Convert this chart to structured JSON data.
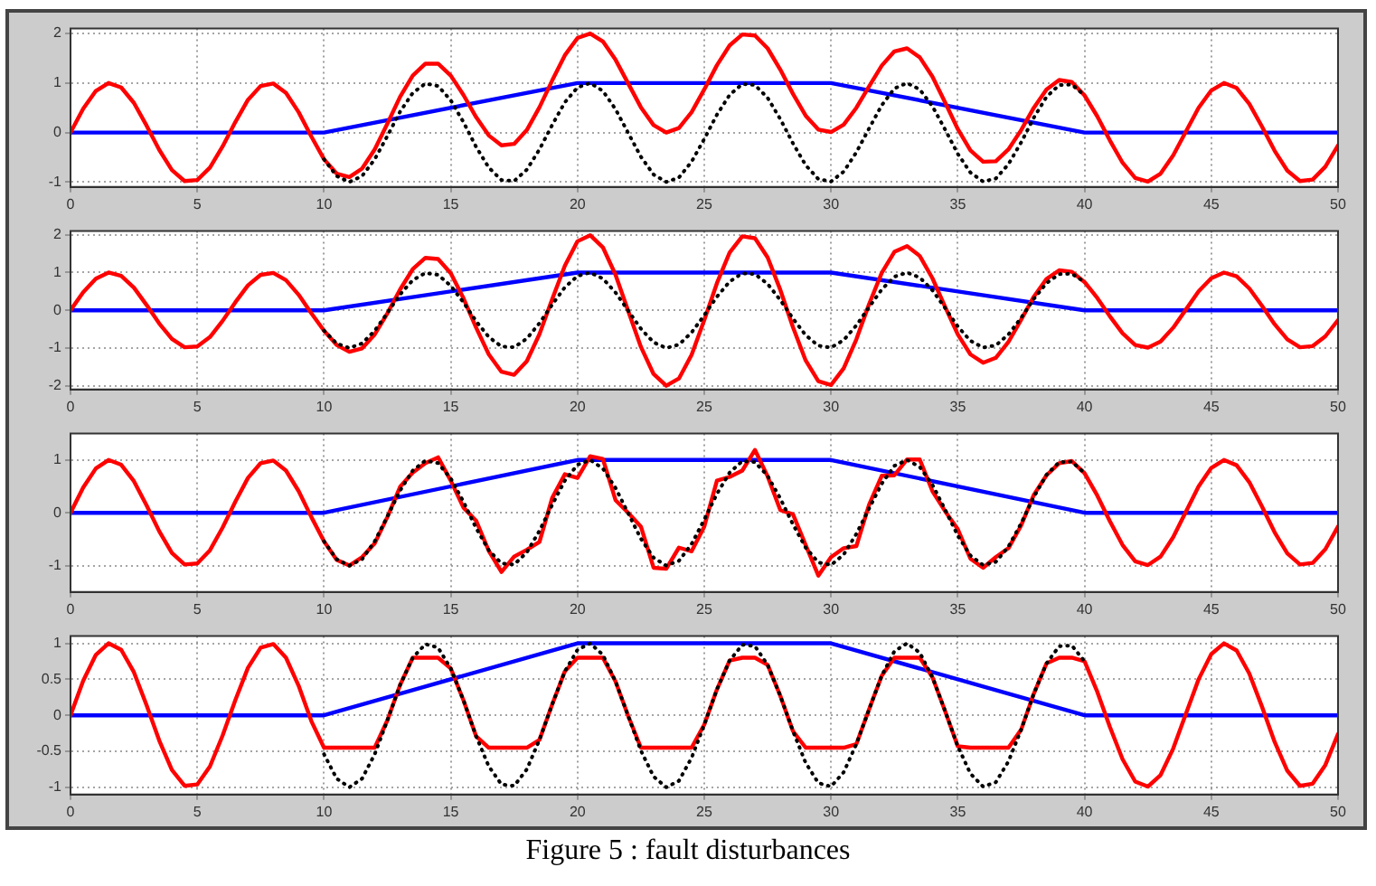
{
  "chart_data": [
    {
      "type": "line",
      "x": [
        0,
        0.5,
        1,
        1.5,
        2,
        2.5,
        3,
        3.5,
        4,
        4.5,
        5,
        5.5,
        6,
        6.5,
        7,
        7.5,
        8,
        8.5,
        9,
        9.5,
        10,
        10.5,
        11,
        11.5,
        12,
        12.5,
        13,
        13.5,
        14,
        14.5,
        15,
        15.5,
        16,
        16.5,
        17,
        17.5,
        18,
        18.5,
        19,
        19.5,
        20,
        20.5,
        21,
        21.5,
        22,
        22.5,
        23,
        23.5,
        24,
        24.5,
        25,
        25.5,
        26,
        26.5,
        27,
        27.5,
        28,
        28.5,
        29,
        29.5,
        30,
        30.5,
        31,
        31.5,
        32,
        32.5,
        33,
        33.5,
        34,
        34.5,
        35,
        35.5,
        36,
        36.5,
        37,
        37.5,
        38,
        38.5,
        39,
        39.5,
        40,
        40.5,
        41,
        41.5,
        42,
        42.5,
        43,
        43.5,
        44,
        44.5,
        45,
        45.5,
        46,
        46.5,
        47,
        47.5,
        48,
        48.5,
        49,
        49.5,
        50
      ],
      "xlim": [
        0,
        50
      ],
      "xticks": [
        0,
        5,
        10,
        15,
        20,
        25,
        30,
        35,
        40,
        45,
        50
      ],
      "ylim": [
        -1.1,
        2.1
      ],
      "yticks": [
        -1,
        0,
        1,
        2
      ],
      "grid": true,
      "marker": "none",
      "series": [
        {
          "color": "#000000",
          "line_style": "dotted",
          "x": [
            10,
            10.5,
            11,
            11.5,
            12,
            12.5,
            13,
            13.5,
            14,
            14.5,
            15,
            15.5,
            16,
            16.5,
            17,
            17.5,
            18,
            18.5,
            19,
            19.5,
            20,
            20.5,
            21,
            21.5,
            22,
            22.5,
            23,
            23.5,
            24,
            24.5,
            25,
            25.5,
            26,
            26.5,
            27,
            27.5,
            28,
            28.5,
            29,
            29.5,
            30,
            30.5,
            31,
            31.5,
            32,
            32.5,
            33,
            33.5,
            34,
            34.5,
            35,
            35.5,
            36,
            36.5,
            37,
            37.5,
            38,
            38.5,
            39,
            39.5,
            40
          ],
          "values": [
            -0.54,
            -0.88,
            -1.0,
            -0.88,
            -0.54,
            -0.07,
            0.42,
            0.8,
            0.99,
            0.94,
            0.65,
            0.21,
            -0.29,
            -0.71,
            -0.96,
            -0.98,
            -0.75,
            -0.34,
            0.15,
            0.61,
            0.91,
            1.0,
            0.84,
            0.47,
            -0.01,
            -0.49,
            -0.85,
            -1.0,
            -0.91,
            -0.59,
            -0.13,
            0.36,
            0.76,
            0.98,
            0.96,
            0.7,
            0.27,
            -0.22,
            -0.66,
            -0.94,
            -0.99,
            -0.79,
            -0.4,
            0.08,
            0.55,
            0.89,
            1.0,
            0.87,
            0.53,
            0.06,
            -0.43,
            -0.81,
            -0.99,
            -0.93,
            -0.64,
            -0.2,
            0.3,
            0.72,
            0.96,
            0.97,
            0.75
          ]
        },
        {
          "color": "#ff0000",
          "values": [
            0,
            0.48,
            0.84,
            1.0,
            0.91,
            0.6,
            0.14,
            -0.35,
            -0.76,
            -0.98,
            -0.96,
            -0.71,
            -0.28,
            0.21,
            0.66,
            0.94,
            0.99,
            0.8,
            0.41,
            -0.08,
            -0.54,
            -0.83,
            -0.9,
            -0.73,
            -0.34,
            0.18,
            0.72,
            1.15,
            1.39,
            1.39,
            1.15,
            0.76,
            0.31,
            -0.06,
            -0.26,
            -0.23,
            0.05,
            0.51,
            1.05,
            1.56,
            1.91,
            2.0,
            1.84,
            1.47,
            0.99,
            0.51,
            0.15,
            0.0,
            0.09,
            0.41,
            0.87,
            1.36,
            1.76,
            1.98,
            1.96,
            1.7,
            1.27,
            0.78,
            0.34,
            0.06,
            0.01,
            0.16,
            0.5,
            0.93,
            1.35,
            1.64,
            1.7,
            1.52,
            1.13,
            0.61,
            0.07,
            -0.36,
            -0.59,
            -0.58,
            -0.34,
            0.05,
            0.5,
            0.87,
            1.06,
            1.02,
            0.75,
            0.33,
            -0.16,
            -0.61,
            -0.92,
            -0.99,
            -0.83,
            -0.46,
            0.02,
            0.5,
            0.85,
            1.0,
            0.9,
            0.58,
            0.12,
            -0.37,
            -0.77,
            -0.98,
            -0.95,
            -0.69,
            -0.26
          ]
        },
        {
          "color": "#0000ff",
          "x": [
            0,
            10,
            20,
            30,
            40,
            50
          ],
          "values": [
            0,
            0,
            1,
            1,
            0,
            0
          ]
        }
      ]
    },
    {
      "type": "line",
      "x": [
        0,
        0.5,
        1,
        1.5,
        2,
        2.5,
        3,
        3.5,
        4,
        4.5,
        5,
        5.5,
        6,
        6.5,
        7,
        7.5,
        8,
        8.5,
        9,
        9.5,
        10,
        10.5,
        11,
        11.5,
        12,
        12.5,
        13,
        13.5,
        14,
        14.5,
        15,
        15.5,
        16,
        16.5,
        17,
        17.5,
        18,
        18.5,
        19,
        19.5,
        20,
        20.5,
        21,
        21.5,
        22,
        22.5,
        23,
        23.5,
        24,
        24.5,
        25,
        25.5,
        26,
        26.5,
        27,
        27.5,
        28,
        28.5,
        29,
        29.5,
        30,
        30.5,
        31,
        31.5,
        32,
        32.5,
        33,
        33.5,
        34,
        34.5,
        35,
        35.5,
        36,
        36.5,
        37,
        37.5,
        38,
        38.5,
        39,
        39.5,
        40,
        40.5,
        41,
        41.5,
        42,
        42.5,
        43,
        43.5,
        44,
        44.5,
        45,
        45.5,
        46,
        46.5,
        47,
        47.5,
        48,
        48.5,
        49,
        49.5,
        50
      ],
      "xlim": [
        0,
        50
      ],
      "xticks": [
        0,
        5,
        10,
        15,
        20,
        25,
        30,
        35,
        40,
        45,
        50
      ],
      "ylim": [
        -2.1,
        2.1
      ],
      "yticks": [
        -2,
        -1,
        0,
        1,
        2
      ],
      "grid": true,
      "marker": "none",
      "series": [
        {
          "color": "#000000",
          "line_style": "dotted",
          "x": [
            10,
            10.5,
            11,
            11.5,
            12,
            12.5,
            13,
            13.5,
            14,
            14.5,
            15,
            15.5,
            16,
            16.5,
            17,
            17.5,
            18,
            18.5,
            19,
            19.5,
            20,
            20.5,
            21,
            21.5,
            22,
            22.5,
            23,
            23.5,
            24,
            24.5,
            25,
            25.5,
            26,
            26.5,
            27,
            27.5,
            28,
            28.5,
            29,
            29.5,
            30,
            30.5,
            31,
            31.5,
            32,
            32.5,
            33,
            33.5,
            34,
            34.5,
            35,
            35.5,
            36,
            36.5,
            37,
            37.5,
            38,
            38.5,
            39,
            39.5,
            40
          ],
          "values": [
            -0.54,
            -0.88,
            -1.0,
            -0.88,
            -0.54,
            -0.07,
            0.42,
            0.8,
            0.99,
            0.94,
            0.65,
            0.21,
            -0.29,
            -0.71,
            -0.96,
            -0.98,
            -0.75,
            -0.34,
            0.15,
            0.61,
            0.91,
            1.0,
            0.84,
            0.47,
            -0.01,
            -0.49,
            -0.85,
            -1.0,
            -0.91,
            -0.59,
            -0.13,
            0.36,
            0.76,
            0.98,
            0.96,
            0.7,
            0.27,
            -0.22,
            -0.66,
            -0.94,
            -0.99,
            -0.79,
            -0.4,
            0.08,
            0.55,
            0.89,
            1.0,
            0.87,
            0.53,
            0.06,
            -0.43,
            -0.81,
            -0.99,
            -0.93,
            -0.64,
            -0.2,
            0.3,
            0.72,
            0.96,
            0.97,
            0.75
          ]
        },
        {
          "color": "#ff0000",
          "values": [
            0,
            0.48,
            0.84,
            1.0,
            0.91,
            0.6,
            0.14,
            -0.35,
            -0.76,
            -0.98,
            -0.96,
            -0.71,
            -0.28,
            0.21,
            0.66,
            0.94,
            0.99,
            0.8,
            0.41,
            -0.08,
            -0.54,
            -0.92,
            -1.1,
            -1.01,
            -0.64,
            -0.08,
            0.55,
            1.09,
            1.39,
            1.36,
            0.98,
            0.32,
            -0.46,
            -1.17,
            -1.63,
            -1.71,
            -1.35,
            -0.63,
            0.29,
            1.18,
            1.83,
            1.99,
            1.67,
            0.94,
            -0.02,
            -0.97,
            -1.69,
            -2.0,
            -1.81,
            -1.18,
            -0.26,
            0.72,
            1.53,
            1.96,
            1.91,
            1.4,
            0.54,
            -0.45,
            -1.33,
            -1.88,
            -1.98,
            -1.54,
            -0.77,
            0.16,
            0.99,
            1.55,
            1.7,
            1.44,
            0.85,
            0.09,
            -0.64,
            -1.17,
            -1.39,
            -1.26,
            -0.84,
            -0.25,
            0.36,
            0.83,
            1.06,
            1.02,
            0.75,
            0.33,
            -0.16,
            -0.61,
            -0.92,
            -0.99,
            -0.83,
            -0.46,
            0.02,
            0.5,
            0.85,
            1.0,
            0.9,
            0.58,
            0.12,
            -0.37,
            -0.77,
            -0.98,
            -0.95,
            -0.69,
            -0.26
          ]
        },
        {
          "color": "#0000ff",
          "x": [
            0,
            10,
            20,
            30,
            40,
            50
          ],
          "values": [
            0,
            0,
            1,
            1,
            0,
            0
          ]
        }
      ]
    },
    {
      "type": "line",
      "x": [
        0,
        0.5,
        1,
        1.5,
        2,
        2.5,
        3,
        3.5,
        4,
        4.5,
        5,
        5.5,
        6,
        6.5,
        7,
        7.5,
        8,
        8.5,
        9,
        9.5,
        10,
        10.5,
        11,
        11.5,
        12,
        12.5,
        13,
        13.5,
        14,
        14.5,
        15,
        15.5,
        16,
        16.5,
        17,
        17.5,
        18,
        18.5,
        19,
        19.5,
        20,
        20.5,
        21,
        21.5,
        22,
        22.5,
        23,
        23.5,
        24,
        24.5,
        25,
        25.5,
        26,
        26.5,
        27,
        27.5,
        28,
        28.5,
        29,
        29.5,
        30,
        30.5,
        31,
        31.5,
        32,
        32.5,
        33,
        33.5,
        34,
        34.5,
        35,
        35.5,
        36,
        36.5,
        37,
        37.5,
        38,
        38.5,
        39,
        39.5,
        40,
        40.5,
        41,
        41.5,
        42,
        42.5,
        43,
        43.5,
        44,
        44.5,
        45,
        45.5,
        46,
        46.5,
        47,
        47.5,
        48,
        48.5,
        49,
        49.5,
        50
      ],
      "xlim": [
        0,
        50
      ],
      "xticks": [
        0,
        5,
        10,
        15,
        20,
        25,
        30,
        35,
        40,
        45,
        50
      ],
      "ylim": [
        -1.5,
        1.5
      ],
      "yticks": [
        -1,
        0,
        1
      ],
      "grid": true,
      "marker": "none",
      "series": [
        {
          "color": "#000000",
          "line_style": "dotted",
          "x": [
            10,
            10.5,
            11,
            11.5,
            12,
            12.5,
            13,
            13.5,
            14,
            14.5,
            15,
            15.5,
            16,
            16.5,
            17,
            17.5,
            18,
            18.5,
            19,
            19.5,
            20,
            20.5,
            21,
            21.5,
            22,
            22.5,
            23,
            23.5,
            24,
            24.5,
            25,
            25.5,
            26,
            26.5,
            27,
            27.5,
            28,
            28.5,
            29,
            29.5,
            30,
            30.5,
            31,
            31.5,
            32,
            32.5,
            33,
            33.5,
            34,
            34.5,
            35,
            35.5,
            36,
            36.5,
            37,
            37.5,
            38,
            38.5,
            39,
            39.5,
            40
          ],
          "values": [
            -0.54,
            -0.88,
            -1.0,
            -0.88,
            -0.54,
            -0.07,
            0.42,
            0.8,
            0.99,
            0.94,
            0.65,
            0.21,
            -0.29,
            -0.71,
            -0.96,
            -0.98,
            -0.75,
            -0.34,
            0.15,
            0.61,
            0.91,
            1.0,
            0.84,
            0.47,
            -0.01,
            -0.49,
            -0.85,
            -1.0,
            -0.91,
            -0.59,
            -0.13,
            0.36,
            0.76,
            0.98,
            0.96,
            0.7,
            0.27,
            -0.22,
            -0.66,
            -0.94,
            -0.99,
            -0.79,
            -0.4,
            0.08,
            0.55,
            0.89,
            1.0,
            0.87,
            0.53,
            0.06,
            -0.43,
            -0.81,
            -0.99,
            -0.93,
            -0.64,
            -0.2,
            0.3,
            0.72,
            0.96,
            0.97,
            0.75
          ]
        },
        {
          "color": "#ff0000",
          "values": [
            0,
            0.48,
            0.84,
            1.0,
            0.91,
            0.6,
            0.14,
            -0.35,
            -0.76,
            -0.98,
            -0.96,
            -0.71,
            -0.28,
            0.21,
            0.66,
            0.94,
            0.99,
            0.8,
            0.41,
            -0.08,
            -0.54,
            -0.89,
            -1.0,
            -0.84,
            -0.58,
            -0.08,
            0.49,
            0.76,
            0.94,
            1.05,
            0.61,
            0.1,
            -0.15,
            -0.72,
            -1.12,
            -0.83,
            -0.7,
            -0.55,
            0.28,
            0.73,
            0.66,
            1.07,
            1.02,
            0.24,
            0.0,
            -0.26,
            -1.04,
            -1.06,
            -0.66,
            -0.73,
            -0.26,
            0.61,
            0.68,
            0.8,
            1.19,
            0.69,
            0.05,
            -0.03,
            -0.61,
            -1.19,
            -0.84,
            -0.67,
            -0.63,
            0.15,
            0.7,
            0.71,
            1.01,
            1.01,
            0.41,
            0.03,
            -0.31,
            -0.87,
            -1.04,
            -0.84,
            -0.67,
            -0.24,
            0.34,
            0.71,
            0.94,
            0.98,
            0.75,
            0.33,
            -0.16,
            -0.61,
            -0.92,
            -0.99,
            -0.83,
            -0.46,
            0.02,
            0.5,
            0.85,
            1.0,
            0.9,
            0.58,
            0.12,
            -0.37,
            -0.77,
            -0.98,
            -0.95,
            -0.69,
            -0.26
          ]
        },
        {
          "color": "#0000ff",
          "x": [
            0,
            10,
            20,
            30,
            40,
            50
          ],
          "values": [
            0,
            0,
            1,
            1,
            0,
            0
          ]
        }
      ]
    },
    {
      "type": "line",
      "x": [
        0,
        0.5,
        1,
        1.5,
        2,
        2.5,
        3,
        3.5,
        4,
        4.5,
        5,
        5.5,
        6,
        6.5,
        7,
        7.5,
        8,
        8.5,
        9,
        9.5,
        10,
        10.5,
        11,
        11.5,
        12,
        12.5,
        13,
        13.5,
        14,
        14.5,
        15,
        15.5,
        16,
        16.5,
        17,
        17.5,
        18,
        18.5,
        19,
        19.5,
        20,
        20.5,
        21,
        21.5,
        22,
        22.5,
        23,
        23.5,
        24,
        24.5,
        25,
        25.5,
        26,
        26.5,
        27,
        27.5,
        28,
        28.5,
        29,
        29.5,
        30,
        30.5,
        31,
        31.5,
        32,
        32.5,
        33,
        33.5,
        34,
        34.5,
        35,
        35.5,
        36,
        36.5,
        37,
        37.5,
        38,
        38.5,
        39,
        39.5,
        40,
        40.5,
        41,
        41.5,
        42,
        42.5,
        43,
        43.5,
        44,
        44.5,
        45,
        45.5,
        46,
        46.5,
        47,
        47.5,
        48,
        48.5,
        49,
        49.5,
        50
      ],
      "xlim": [
        0,
        50
      ],
      "xticks": [
        0,
        5,
        10,
        15,
        20,
        25,
        30,
        35,
        40,
        45,
        50
      ],
      "ylim": [
        -1.1,
        1.1
      ],
      "yticks": [
        -1,
        -0.5,
        0,
        0.5,
        1
      ],
      "grid": true,
      "marker": "none",
      "series": [
        {
          "color": "#000000",
          "line_style": "dotted",
          "x": [
            10,
            10.5,
            11,
            11.5,
            12,
            12.5,
            13,
            13.5,
            14,
            14.5,
            15,
            15.5,
            16,
            16.5,
            17,
            17.5,
            18,
            18.5,
            19,
            19.5,
            20,
            20.5,
            21,
            21.5,
            22,
            22.5,
            23,
            23.5,
            24,
            24.5,
            25,
            25.5,
            26,
            26.5,
            27,
            27.5,
            28,
            28.5,
            29,
            29.5,
            30,
            30.5,
            31,
            31.5,
            32,
            32.5,
            33,
            33.5,
            34,
            34.5,
            35,
            35.5,
            36,
            36.5,
            37,
            37.5,
            38,
            38.5,
            39,
            39.5,
            40
          ],
          "values": [
            -0.54,
            -0.88,
            -1.0,
            -0.88,
            -0.54,
            -0.07,
            0.42,
            0.8,
            0.99,
            0.94,
            0.65,
            0.21,
            -0.29,
            -0.71,
            -0.96,
            -0.98,
            -0.75,
            -0.34,
            0.15,
            0.61,
            0.91,
            1.0,
            0.84,
            0.47,
            -0.01,
            -0.49,
            -0.85,
            -1.0,
            -0.91,
            -0.59,
            -0.13,
            0.36,
            0.76,
            0.98,
            0.96,
            0.7,
            0.27,
            -0.22,
            -0.66,
            -0.94,
            -0.99,
            -0.79,
            -0.4,
            0.08,
            0.55,
            0.89,
            1.0,
            0.87,
            0.53,
            0.06,
            -0.43,
            -0.81,
            -0.99,
            -0.93,
            -0.64,
            -0.2,
            0.3,
            0.72,
            0.96,
            0.97,
            0.75
          ]
        },
        {
          "color": "#ff0000",
          "values": [
            0,
            0.48,
            0.84,
            1.0,
            0.91,
            0.6,
            0.14,
            -0.35,
            -0.76,
            -0.98,
            -0.96,
            -0.71,
            -0.28,
            0.21,
            0.66,
            0.94,
            0.99,
            0.8,
            0.41,
            -0.08,
            -0.45,
            -0.45,
            -0.45,
            -0.45,
            -0.45,
            -0.07,
            0.42,
            0.8,
            0.8,
            0.8,
            0.65,
            0.21,
            -0.29,
            -0.45,
            -0.45,
            -0.45,
            -0.45,
            -0.34,
            0.15,
            0.61,
            0.8,
            0.8,
            0.8,
            0.47,
            -0.01,
            -0.45,
            -0.45,
            -0.45,
            -0.45,
            -0.45,
            -0.13,
            0.36,
            0.76,
            0.8,
            0.8,
            0.7,
            0.27,
            -0.22,
            -0.45,
            -0.45,
            -0.45,
            -0.45,
            -0.4,
            0.08,
            0.55,
            0.8,
            0.8,
            0.8,
            0.53,
            0.06,
            -0.43,
            -0.45,
            -0.45,
            -0.45,
            -0.45,
            -0.2,
            0.3,
            0.72,
            0.8,
            0.8,
            0.75,
            0.33,
            -0.16,
            -0.61,
            -0.92,
            -0.99,
            -0.83,
            -0.46,
            0.02,
            0.5,
            0.85,
            1.0,
            0.9,
            0.58,
            0.12,
            -0.37,
            -0.77,
            -0.98,
            -0.95,
            -0.69,
            -0.26
          ]
        },
        {
          "color": "#0000ff",
          "x": [
            0,
            10,
            20,
            30,
            40,
            50
          ],
          "values": [
            0,
            0,
            1,
            1,
            0,
            0
          ]
        }
      ],
      "annotations": [
        "Figure 5 : fault disturbances"
      ]
    }
  ]
}
